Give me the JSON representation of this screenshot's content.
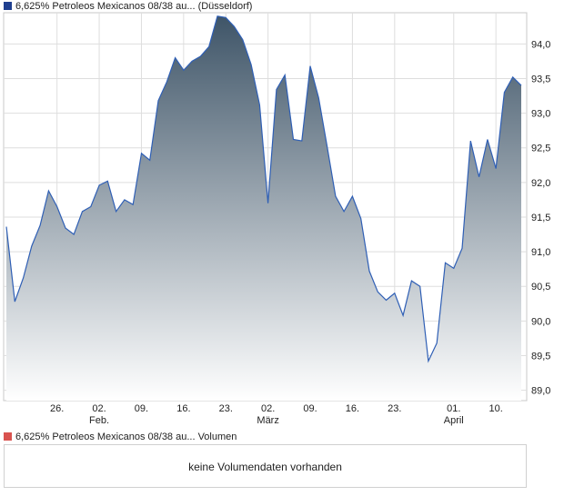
{
  "price_legend": {
    "label": "6,625% Petroleos Mexicanos 08/38 au... (Düsseldorf)",
    "color": "#1f3f8f"
  },
  "volume_legend": {
    "label": "6,625% Petroleos Mexicanos 08/38 au... Volumen",
    "color": "#d9534f"
  },
  "volume_panel": {
    "message": "keine Volumendaten vorhanden"
  },
  "chart_data": {
    "type": "area",
    "title": "6,625% Petroleos Mexicanos 08/38 au... (Düsseldorf)",
    "xlabel": "",
    "ylabel": "",
    "ylim": [
      88.85,
      94.45
    ],
    "grid": true,
    "y_ticks": [
      "89,0",
      "89,5",
      "90,0",
      "90,5",
      "91,0",
      "91,5",
      "92,0",
      "92,5",
      "93,0",
      "93,5",
      "94,0"
    ],
    "y_tick_values": [
      89.0,
      89.5,
      90.0,
      90.5,
      91.0,
      91.5,
      92.0,
      92.5,
      93.0,
      93.5,
      94.0
    ],
    "x_ticks": [
      {
        "index": 6,
        "label": "26.",
        "month": ""
      },
      {
        "index": 11,
        "label": "02.",
        "month": "Feb."
      },
      {
        "index": 16,
        "label": "09.",
        "month": ""
      },
      {
        "index": 21,
        "label": "16.",
        "month": ""
      },
      {
        "index": 26,
        "label": "23.",
        "month": ""
      },
      {
        "index": 31,
        "label": "02.",
        "month": "März"
      },
      {
        "index": 36,
        "label": "09.",
        "month": ""
      },
      {
        "index": 41,
        "label": "16.",
        "month": ""
      },
      {
        "index": 46,
        "label": "23.",
        "month": ""
      },
      {
        "index": 53,
        "label": "01.",
        "month": "April"
      },
      {
        "index": 58,
        "label": "10.",
        "month": ""
      }
    ],
    "series": [
      {
        "name": "6,625% Petroleos Mexicanos 08/38 au... (Düsseldorf)",
        "values": [
          91.36,
          90.28,
          90.62,
          91.08,
          91.38,
          91.88,
          91.65,
          91.34,
          91.25,
          91.58,
          91.65,
          91.96,
          92.02,
          91.58,
          91.75,
          91.68,
          92.42,
          92.32,
          93.18,
          93.45,
          93.8,
          93.62,
          93.75,
          93.82,
          93.96,
          94.4,
          94.38,
          94.25,
          94.06,
          93.7,
          93.12,
          91.7,
          93.34,
          93.55,
          92.62,
          92.6,
          93.68,
          93.22,
          92.52,
          91.8,
          91.58,
          91.8,
          91.48,
          90.72,
          90.42,
          90.3,
          90.4,
          90.08,
          90.58,
          90.5,
          89.42,
          89.68,
          90.84,
          90.76,
          91.05,
          92.6,
          92.08,
          92.62,
          92.2,
          93.3,
          93.52,
          93.4
        ]
      }
    ]
  }
}
